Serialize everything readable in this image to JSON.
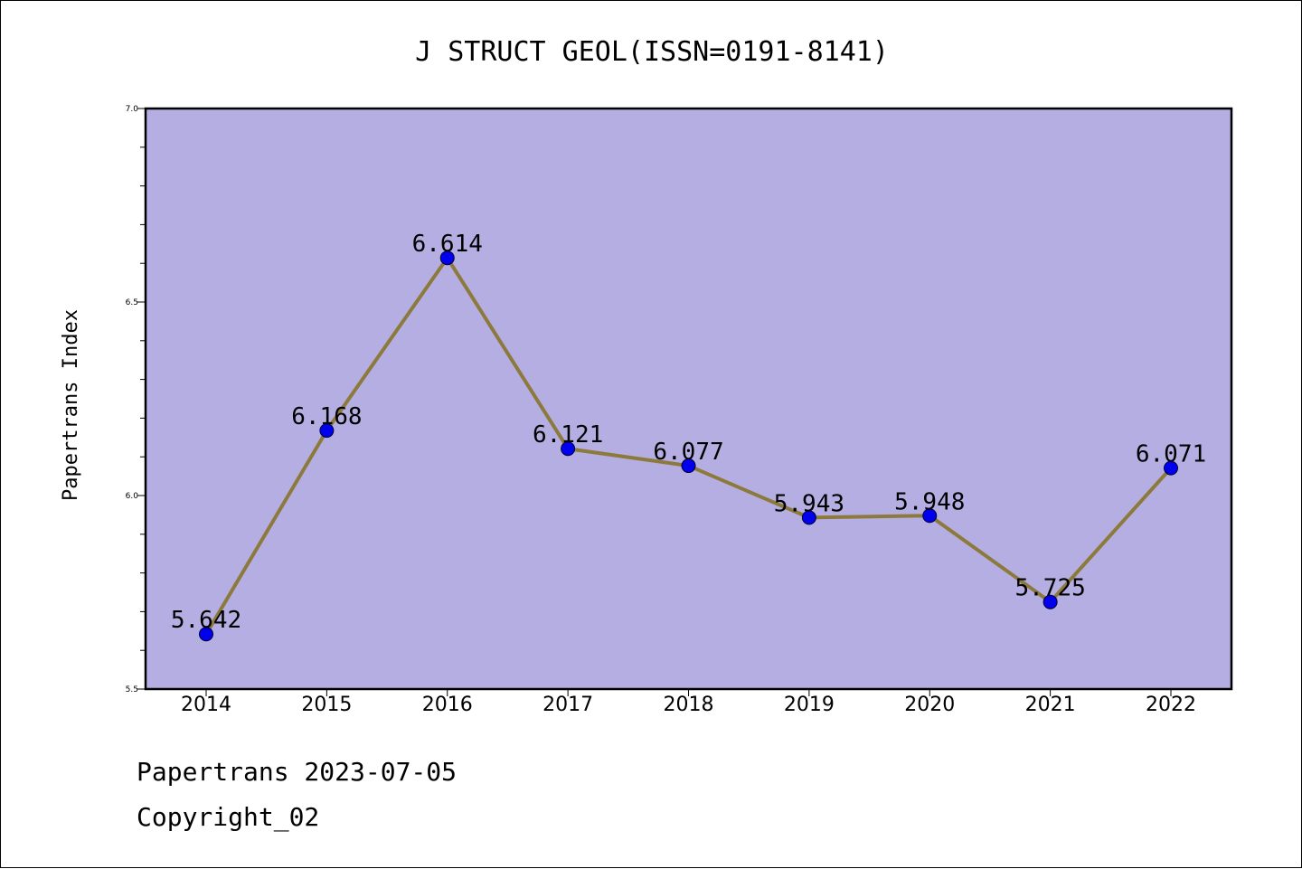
{
  "chart_data": {
    "type": "line",
    "title": "J STRUCT GEOL(ISSN=0191-8141)",
    "xlabel": "",
    "ylabel": "Papertrans Index",
    "categories": [
      "2014",
      "2015",
      "2016",
      "2017",
      "2018",
      "2019",
      "2020",
      "2021",
      "2022"
    ],
    "series": [
      {
        "values": [
          5.642,
          6.168,
          6.614,
          6.121,
          6.077,
          5.943,
          5.948,
          5.725,
          6.071
        ],
        "labels": [
          "5.642",
          "6.168",
          "6.614",
          "6.121",
          "6.077",
          "5.943",
          "5.948",
          "5.725",
          "6.071"
        ]
      }
    ],
    "ylim": [
      5.5,
      7.0
    ],
    "yticks": [
      "5.5",
      "6.0",
      "6.5",
      "7.0"
    ],
    "yminor_step": 0.1,
    "grid": false,
    "colors": {
      "plot_background": "#b5aee2",
      "line": "#8c7a3c",
      "marker": "#0000ee"
    }
  },
  "footer": {
    "date_line": "Papertrans 2023-07-05",
    "copyright": "Copyright_02"
  }
}
